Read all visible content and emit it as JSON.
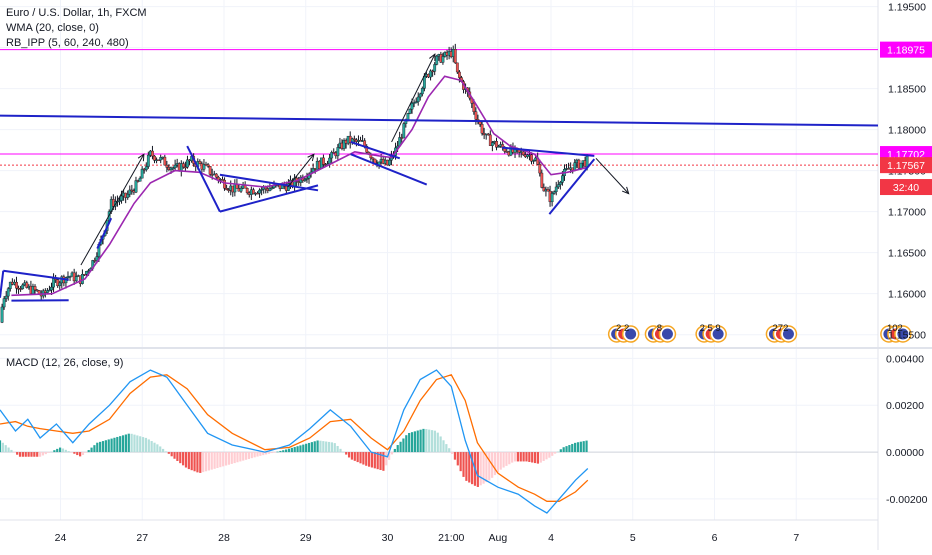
{
  "chart_data": {
    "type": "candlestick",
    "title": "Euro / U.S. Dollar, 1h, FXCM",
    "indicators": [
      "WMA (20, close, 0)",
      "RB_IPP (5, 60, 240, 480)"
    ],
    "price_axis": {
      "ticks": [
        1.195,
        1.19,
        1.185,
        1.18,
        1.175,
        1.17,
        1.165,
        1.16,
        1.155
      ],
      "tick_labels": [
        "1.19500",
        "1.19000",
        "1.18500",
        "1.18000",
        "1.17500",
        "1.17000",
        "1.16500",
        "1.16000",
        "1.15500"
      ],
      "ylim": [
        1.1535,
        1.1958
      ]
    },
    "time_axis": {
      "ticks": [
        {
          "label": "24",
          "t": 1.0
        },
        {
          "label": "27",
          "t": 2.0
        },
        {
          "label": "28",
          "t": 3.0
        },
        {
          "label": "29",
          "t": 4.0
        },
        {
          "label": "30",
          "t": 5.0
        },
        {
          "label": "21:00",
          "t": 5.78
        },
        {
          "label": "Aug",
          "t": 6.35
        },
        {
          "label": "4",
          "t": 7.0
        },
        {
          "label": "5",
          "t": 8.0
        },
        {
          "label": "6",
          "t": 9.0
        },
        {
          "label": "7",
          "t": 10.0
        }
      ],
      "xlim": [
        0.26,
        11.0
      ]
    },
    "price_labels": [
      {
        "value": 1.18975,
        "text": "1.18975",
        "color": "#ff00ff",
        "style": "line"
      },
      {
        "value": 1.17702,
        "text": "1.17702",
        "color": "#ff00ff",
        "style": "line"
      },
      {
        "value": 1.17567,
        "text": "1.17567",
        "color": "#f23645",
        "style": "dotted"
      },
      {
        "value": 1.173,
        "text": "32:40",
        "color": "#f23645",
        "style": "none"
      }
    ],
    "close_anchors": [
      [
        0.26,
        1.1565
      ],
      [
        0.3,
        1.1595
      ],
      [
        0.4,
        1.1615
      ],
      [
        0.55,
        1.1608
      ],
      [
        0.7,
        1.1603
      ],
      [
        0.78,
        1.1597
      ],
      [
        0.9,
        1.1612
      ],
      [
        1.1,
        1.1622
      ],
      [
        1.25,
        1.1617
      ],
      [
        1.4,
        1.164
      ],
      [
        1.5,
        1.1665
      ],
      [
        1.62,
        1.171
      ],
      [
        1.8,
        1.1718
      ],
      [
        1.95,
        1.1735
      ],
      [
        2.1,
        1.177
      ],
      [
        2.2,
        1.1765
      ],
      [
        2.4,
        1.1752
      ],
      [
        2.6,
        1.1762
      ],
      [
        2.75,
        1.1755
      ],
      [
        3.0,
        1.1735
      ],
      [
        3.1,
        1.1728
      ],
      [
        3.3,
        1.1726
      ],
      [
        3.5,
        1.1728
      ],
      [
        3.8,
        1.1732
      ],
      [
        4.0,
        1.1745
      ],
      [
        4.1,
        1.1755
      ],
      [
        4.3,
        1.1765
      ],
      [
        4.5,
        1.1787
      ],
      [
        4.7,
        1.1783
      ],
      [
        4.85,
        1.1762
      ],
      [
        5.0,
        1.1757
      ],
      [
        5.1,
        1.1775
      ],
      [
        5.3,
        1.1828
      ],
      [
        5.45,
        1.186
      ],
      [
        5.6,
        1.1885
      ],
      [
        5.72,
        1.189
      ],
      [
        5.8,
        1.1895
      ],
      [
        5.85,
        1.1868
      ],
      [
        6.0,
        1.184
      ],
      [
        6.1,
        1.1812
      ],
      [
        6.2,
        1.179
      ],
      [
        6.35,
        1.178
      ],
      [
        6.5,
        1.1774
      ],
      [
        6.6,
        1.177
      ],
      [
        6.7,
        1.1772
      ],
      [
        6.82,
        1.1763
      ],
      [
        6.9,
        1.173
      ],
      [
        7.0,
        1.1715
      ],
      [
        7.1,
        1.174
      ],
      [
        7.25,
        1.1755
      ],
      [
        7.45,
        1.1762
      ]
    ],
    "wma_anchors": [
      [
        0.4,
        1.1598
      ],
      [
        0.9,
        1.16
      ],
      [
        1.3,
        1.1618
      ],
      [
        1.6,
        1.166
      ],
      [
        1.9,
        1.171
      ],
      [
        2.1,
        1.1735
      ],
      [
        2.4,
        1.175
      ],
      [
        2.7,
        1.1748
      ],
      [
        3.0,
        1.1735
      ],
      [
        3.5,
        1.173
      ],
      [
        3.9,
        1.1738
      ],
      [
        4.3,
        1.1758
      ],
      [
        4.6,
        1.1773
      ],
      [
        4.9,
        1.1768
      ],
      [
        5.05,
        1.1766
      ],
      [
        5.3,
        1.18
      ],
      [
        5.5,
        1.184
      ],
      [
        5.7,
        1.1865
      ],
      [
        5.9,
        1.186
      ],
      [
        6.1,
        1.1828
      ],
      [
        6.3,
        1.1795
      ],
      [
        6.5,
        1.178
      ],
      [
        6.8,
        1.177
      ],
      [
        7.0,
        1.1745
      ],
      [
        7.2,
        1.1748
      ],
      [
        7.45,
        1.1754
      ]
    ],
    "horizontal_lines": [
      {
        "value": 1.18975,
        "color": "#ff00ff",
        "width": 1
      },
      {
        "value": 1.17702,
        "color": "#ff00ff",
        "width": 1
      },
      {
        "value": 1.17567,
        "color": "#f23645",
        "width": 1,
        "dash": "2 2"
      }
    ],
    "trend_lines": [
      {
        "from": [
          0.26,
          1.1817
        ],
        "to": [
          11.0,
          1.1805
        ],
        "color": "#1e22c8",
        "width": 2
      },
      {
        "from": [
          0.3,
          1.1628
        ],
        "to": [
          1.1,
          1.1617
        ],
        "color": "#1e22c8",
        "width": 2
      },
      {
        "from": [
          0.4,
          1.15915
        ],
        "to": [
          1.1,
          1.1592
        ],
        "color": "#1e22c8",
        "width": 2
      },
      {
        "from": [
          0.3,
          1.1628
        ],
        "to": [
          0.26,
          1.1595
        ],
        "color": "#1e22c8",
        "width": 2
      },
      {
        "from": [
          1.45,
          1.1655
        ],
        "to": [
          1.62,
          1.1692
        ],
        "color": "#1e22c8",
        "width": 2
      },
      {
        "from": [
          2.55,
          1.178
        ],
        "to": [
          2.95,
          1.17
        ],
        "color": "#1e22c8",
        "width": 2
      },
      {
        "from": [
          2.95,
          1.17
        ],
        "to": [
          4.15,
          1.1732
        ],
        "color": "#1e22c8",
        "width": 2
      },
      {
        "from": [
          2.95,
          1.1745
        ],
        "to": [
          4.15,
          1.1726
        ],
        "color": "#1e22c8",
        "width": 2
      },
      {
        "from": [
          4.55,
          1.1785
        ],
        "to": [
          5.15,
          1.1765
        ],
        "color": "#1e22c8",
        "width": 2
      },
      {
        "from": [
          4.55,
          1.177
        ],
        "to": [
          5.48,
          1.1733
        ],
        "color": "#1e22c8",
        "width": 2
      },
      {
        "from": [
          6.4,
          1.1778
        ],
        "to": [
          7.53,
          1.1768
        ],
        "color": "#1e22c8",
        "width": 2
      },
      {
        "from": [
          6.98,
          1.1697
        ],
        "to": [
          7.53,
          1.1764
        ],
        "color": "#1e22c8",
        "width": 2
      }
    ],
    "arrows": [
      {
        "from": [
          1.25,
          1.1635
        ],
        "to": [
          2.02,
          1.177
        ]
      },
      {
        "from": [
          3.78,
          1.173
        ],
        "to": [
          4.1,
          1.177
        ]
      },
      {
        "from": [
          5.05,
          1.1785
        ],
        "to": [
          5.58,
          1.1892
        ]
      },
      {
        "from": [
          7.55,
          1.1765
        ],
        "to": [
          7.95,
          1.1722
        ]
      }
    ],
    "event_badges": [
      {
        "t": 7.95,
        "text": "2  2"
      },
      {
        "t": 8.4,
        "text": "8"
      },
      {
        "t": 9.02,
        "text": "2  5  9"
      },
      {
        "t": 9.88,
        "text": "272"
      },
      {
        "t": 11.28,
        "text": "102"
      }
    ],
    "macd": {
      "label": "MACD (12, 26, close, 9)",
      "ticks": [
        0.004,
        0.002,
        0.0,
        -0.002
      ],
      "tick_labels": [
        "0.00400",
        "0.00200",
        "0.00000",
        "-0.00200"
      ],
      "ylim": [
        -0.0029,
        0.0044
      ],
      "macd_line": [
        [
          0.26,
          0.0018
        ],
        [
          0.45,
          0.0009
        ],
        [
          0.6,
          0.0014
        ],
        [
          0.75,
          0.0006
        ],
        [
          0.95,
          0.0012
        ],
        [
          1.15,
          0.0004
        ],
        [
          1.35,
          0.0012
        ],
        [
          1.6,
          0.002
        ],
        [
          1.85,
          0.003
        ],
        [
          2.1,
          0.0035
        ],
        [
          2.3,
          0.0032
        ],
        [
          2.55,
          0.002
        ],
        [
          2.8,
          0.0008
        ],
        [
          3.1,
          0.0003
        ],
        [
          3.5,
          0.0
        ],
        [
          3.8,
          0.0003
        ],
        [
          4.05,
          0.001
        ],
        [
          4.3,
          0.0018
        ],
        [
          4.55,
          0.0011
        ],
        [
          4.8,
          0.0
        ],
        [
          5.0,
          -0.0002
        ],
        [
          5.2,
          0.0018
        ],
        [
          5.4,
          0.0031
        ],
        [
          5.6,
          0.0035
        ],
        [
          5.78,
          0.0028
        ],
        [
          5.95,
          0.0005
        ],
        [
          6.1,
          -0.001
        ],
        [
          6.35,
          -0.0015
        ],
        [
          6.6,
          -0.0018
        ],
        [
          6.8,
          -0.0023
        ],
        [
          6.95,
          -0.0026
        ],
        [
          7.1,
          -0.002
        ],
        [
          7.3,
          -0.0012
        ],
        [
          7.45,
          -0.0007
        ]
      ],
      "signal_line": [
        [
          0.26,
          0.0012
        ],
        [
          0.45,
          0.0013
        ],
        [
          0.6,
          0.0011
        ],
        [
          0.75,
          0.001
        ],
        [
          0.95,
          0.0009
        ],
        [
          1.15,
          0.0008
        ],
        [
          1.35,
          0.0009
        ],
        [
          1.6,
          0.0014
        ],
        [
          1.85,
          0.0025
        ],
        [
          2.1,
          0.0032
        ],
        [
          2.3,
          0.0033
        ],
        [
          2.55,
          0.0027
        ],
        [
          2.8,
          0.0016
        ],
        [
          3.1,
          0.0008
        ],
        [
          3.5,
          0.0001
        ],
        [
          3.8,
          0.0002
        ],
        [
          4.05,
          0.0006
        ],
        [
          4.3,
          0.0013
        ],
        [
          4.55,
          0.0014
        ],
        [
          4.8,
          0.0006
        ],
        [
          5.0,
          0.0001
        ],
        [
          5.2,
          0.0009
        ],
        [
          5.4,
          0.0022
        ],
        [
          5.6,
          0.0031
        ],
        [
          5.78,
          0.0033
        ],
        [
          5.95,
          0.0022
        ],
        [
          6.1,
          0.0004
        ],
        [
          6.35,
          -0.0009
        ],
        [
          6.6,
          -0.0015
        ],
        [
          6.8,
          -0.0018
        ],
        [
          6.95,
          -0.0021
        ],
        [
          7.1,
          -0.0021
        ],
        [
          7.3,
          -0.0017
        ],
        [
          7.45,
          -0.0012
        ]
      ],
      "histogram": [
        [
          0.26,
          0.0005
        ],
        [
          0.5,
          -0.0002
        ],
        [
          0.75,
          -0.0002
        ],
        [
          1.0,
          0.0002
        ],
        [
          1.25,
          -0.0002
        ],
        [
          1.45,
          0.0004
        ],
        [
          1.65,
          0.0006
        ],
        [
          1.85,
          0.0008
        ],
        [
          2.05,
          0.0006
        ],
        [
          2.2,
          0.0003
        ],
        [
          2.4,
          -0.0003
        ],
        [
          2.55,
          -0.0007
        ],
        [
          2.7,
          -0.0009
        ],
        [
          2.9,
          -0.0007
        ],
        [
          3.1,
          -0.0005
        ],
        [
          3.4,
          -0.0002
        ],
        [
          3.75,
          0.0001
        ],
        [
          3.95,
          0.0003
        ],
        [
          4.15,
          0.0005
        ],
        [
          4.35,
          0.0004
        ],
        [
          4.55,
          -0.0003
        ],
        [
          4.75,
          -0.0006
        ],
        [
          4.95,
          -0.0008
        ],
        [
          5.1,
          0.0002
        ],
        [
          5.25,
          0.0008
        ],
        [
          5.45,
          0.001
        ],
        [
          5.6,
          0.0009
        ],
        [
          5.75,
          0.0002
        ],
        [
          5.95,
          -0.0012
        ],
        [
          6.1,
          -0.0015
        ],
        [
          6.25,
          -0.0012
        ],
        [
          6.4,
          -0.0007
        ],
        [
          6.55,
          -0.0004
        ],
        [
          6.7,
          -0.0004
        ],
        [
          6.85,
          -0.0005
        ],
        [
          7.0,
          -0.0002
        ],
        [
          7.15,
          0.0002
        ],
        [
          7.3,
          0.0004
        ],
        [
          7.45,
          0.0005
        ]
      ]
    },
    "colors": {
      "up": "#26a69a",
      "down": "#ef5350",
      "wick": "#131722",
      "wma": "#9c27b0",
      "macd": "#2196f3",
      "signal": "#ff6d00",
      "hist_up": "#26a69a",
      "hist_up_weak": "#b2dfdb",
      "hist_down": "#ef5350",
      "hist_down_weak": "#ffcdd2",
      "grid": "#f0f3fa",
      "axis": "#e0e3eb",
      "trend": "#1e22c8"
    }
  }
}
